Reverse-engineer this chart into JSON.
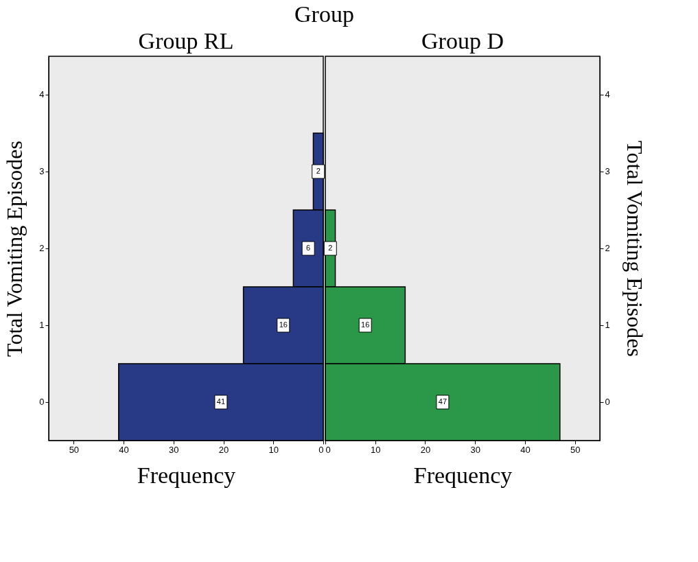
{
  "chart_data": [
    {
      "type": "bar",
      "orientation": "horizontal",
      "title": "Group RL",
      "xlabel": "Frequency",
      "ylabel": "Total Vomiting Episodes",
      "annotations": [
        "Group"
      ],
      "categories": [
        "4",
        "3",
        "2",
        "1",
        "0"
      ],
      "series": [
        {
          "color": "#283a85",
          "values": [
            null,
            2,
            6,
            16,
            41
          ]
        }
      ],
      "xlim": [
        55,
        0
      ],
      "xticks": [
        50,
        40,
        30,
        20,
        10,
        0
      ],
      "data_labels": true
    },
    {
      "type": "bar",
      "orientation": "horizontal",
      "title": "Group D",
      "xlabel": "Frequency",
      "ylabel": "Total Vomiting Episodes",
      "categories": [
        "4",
        "3",
        "2",
        "1",
        "0"
      ],
      "series": [
        {
          "color": "#2a9848",
          "values": [
            null,
            null,
            2,
            16,
            47
          ]
        }
      ],
      "xlim": [
        0,
        55
      ],
      "xticks": [
        0,
        10,
        20,
        30,
        40,
        50
      ],
      "data_labels": true
    }
  ]
}
